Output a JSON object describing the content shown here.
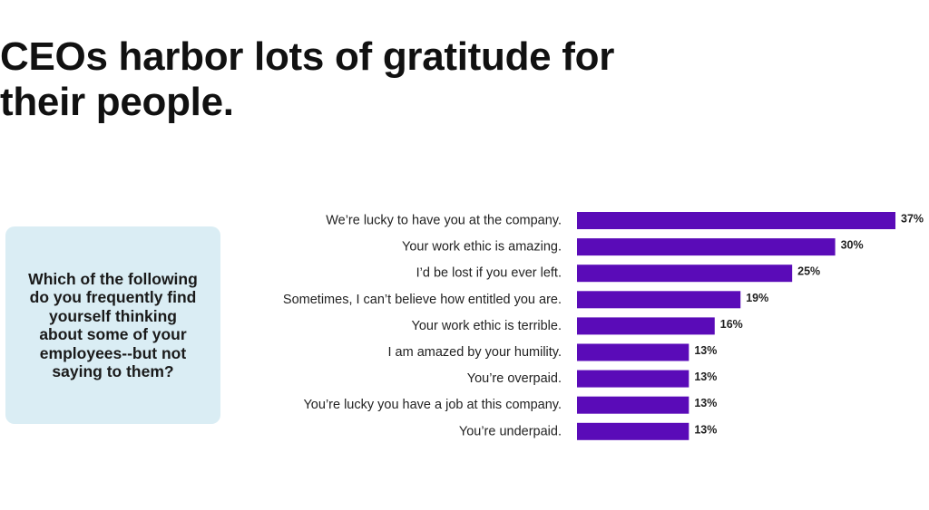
{
  "headline": "CEOs harbor lots of gratitude for their people.",
  "question": "Which of the following do you frequently find yourself thinking about some of your employees--but not saying to them?",
  "colors": {
    "bar": "#5a0bb8",
    "question_box": "#daedf4"
  },
  "chart_data": {
    "type": "bar",
    "orientation": "horizontal",
    "categories": [
      "We’re lucky to have you at the company.",
      "Your work ethic is amazing.",
      "I’d be lost if you ever left.",
      "Sometimes, I can’t believe how entitled you are.",
      "Your work ethic is terrible.",
      "I am amazed by your humility.",
      "You’re overpaid.",
      "You’re lucky you have a job at this company.",
      "You’re underpaid."
    ],
    "values": [
      37,
      30,
      25,
      19,
      16,
      13,
      13,
      13,
      13
    ],
    "value_labels": [
      "37%",
      "30%",
      "25%",
      "19%",
      "16%",
      "13%",
      "13%",
      "13%",
      "13%"
    ],
    "unit": "%",
    "xlim": [
      0,
      37
    ],
    "grid": false,
    "legend": "none"
  }
}
